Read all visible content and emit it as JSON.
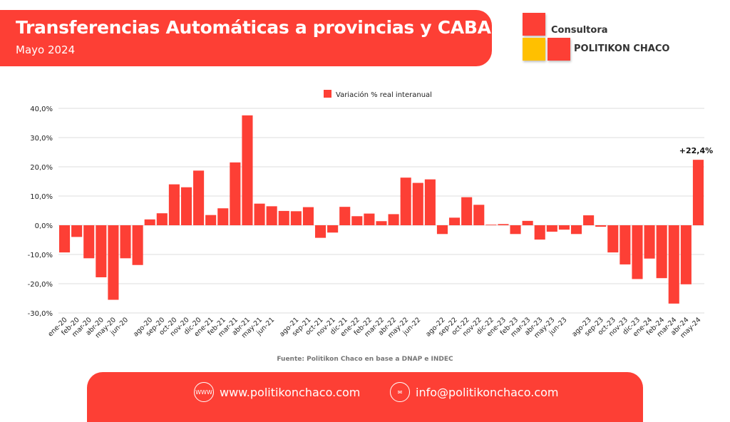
{
  "header": {
    "title": "Transferencias Automáticas a provincias y CABA",
    "subtitle": "Mayo 2024"
  },
  "logo": {
    "line1": "Consultora",
    "line2": "POLITIKON CHACO",
    "colors": [
      "#fd3f35",
      "#ffc000",
      "#fd3f35"
    ]
  },
  "source": "Fuente: Politikon Chaco en base a DNAP e INDEC",
  "footer": {
    "website": "www.politikonchaco.com",
    "website_icon": "globe-www-icon",
    "email": "info@politikonchaco.com",
    "email_icon": "envelope-icon"
  },
  "chart_data": {
    "type": "bar",
    "legend": "Variación % real interanual",
    "legend_position": "top",
    "color": "#fd3f35",
    "grid": true,
    "ylim": [
      -30,
      40
    ],
    "yticks": [
      "-30,0%",
      "-20,0%",
      "-10,0%",
      "0,0%",
      "10,0%",
      "20,0%",
      "30,0%",
      "40,0%"
    ],
    "categories": [
      "ene-20",
      "feb-20",
      "mar-20",
      "abr-20",
      "may-20",
      "jun-20",
      "",
      "ago-20",
      "sep-20",
      "oct-20",
      "nov-20",
      "dic-20",
      "ene-21",
      "feb-21",
      "mar-21",
      "abr-21",
      "may-21",
      "jun-21",
      "",
      "ago-21",
      "sep-21",
      "oct-21",
      "nov-21",
      "dic-21",
      "ene-22",
      "feb-22",
      "mar-22",
      "abr-22",
      "may-22",
      "jun-22",
      "",
      "ago-22",
      "sep-22",
      "oct-22",
      "nov-22",
      "dic-22",
      "ene-23",
      "feb-23",
      "mar-23",
      "abr-23",
      "may-23",
      "jun-23",
      "",
      "ago-23",
      "sep-23",
      "oct-23",
      "nov-23",
      "dic-23",
      "ene-24",
      "feb-24",
      "mar-24",
      "abr-24",
      "may-24"
    ],
    "values": [
      -9.3,
      -4.0,
      -11.3,
      -17.8,
      -25.5,
      -11.3,
      -13.6,
      2.0,
      4.1,
      14.0,
      13.0,
      18.7,
      3.5,
      5.8,
      21.5,
      37.6,
      7.4,
      6.5,
      4.9,
      4.8,
      6.2,
      -4.3,
      -2.5,
      6.3,
      3.1,
      4.0,
      1.4,
      3.8,
      16.3,
      14.5,
      15.7,
      -3.0,
      2.6,
      9.6,
      7.0,
      0.2,
      0.4,
      -3.0,
      1.5,
      -4.9,
      -2.2,
      -1.5,
      -3.0,
      3.4,
      -0.5,
      -9.3,
      -13.4,
      -18.4,
      -11.4,
      -18.1,
      -26.8,
      -20.2,
      22.4
    ],
    "annotation": "+22,4%"
  }
}
